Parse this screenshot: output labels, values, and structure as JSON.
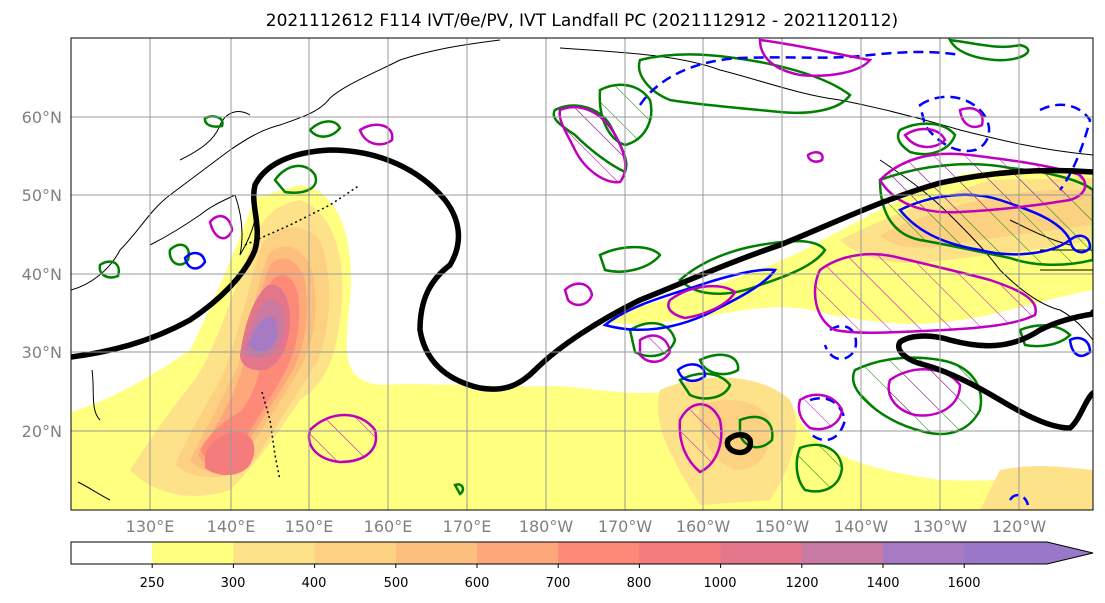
{
  "title": "2021112612 F114 IVT/θe/PV, IVT Landfall PC (2021112912 - 2021120112)",
  "lat_labels": [
    "60°N",
    "50°N",
    "40°N",
    "30°N",
    "20°N"
  ],
  "lon_labels": [
    "130°E",
    "140°E",
    "150°E",
    "160°E",
    "170°E",
    "180°W",
    "170°W",
    "160°W",
    "150°W",
    "140°W",
    "130°W",
    "120°W"
  ],
  "colorbar": {
    "ticks": [
      "250",
      "300",
      "400",
      "500",
      "600",
      "700",
      "800",
      "1000",
      "1200",
      "1400",
      "1600"
    ],
    "colors": [
      "#ffffff",
      "#ffff80",
      "#fde28a",
      "#fcd282",
      "#fdbf7d",
      "#fda77a",
      "#fd8a78",
      "#f47c7c",
      "#e3768a",
      "#c87aa3",
      "#a77ac4",
      "#9a78c9"
    ]
  },
  "colors": {
    "thick_contour": "#000000",
    "green_contour": "#008000",
    "blue_contour": "#0000ff",
    "magenta_contour": "#c000c0",
    "grid": "#999999",
    "coast": "#000000"
  }
}
